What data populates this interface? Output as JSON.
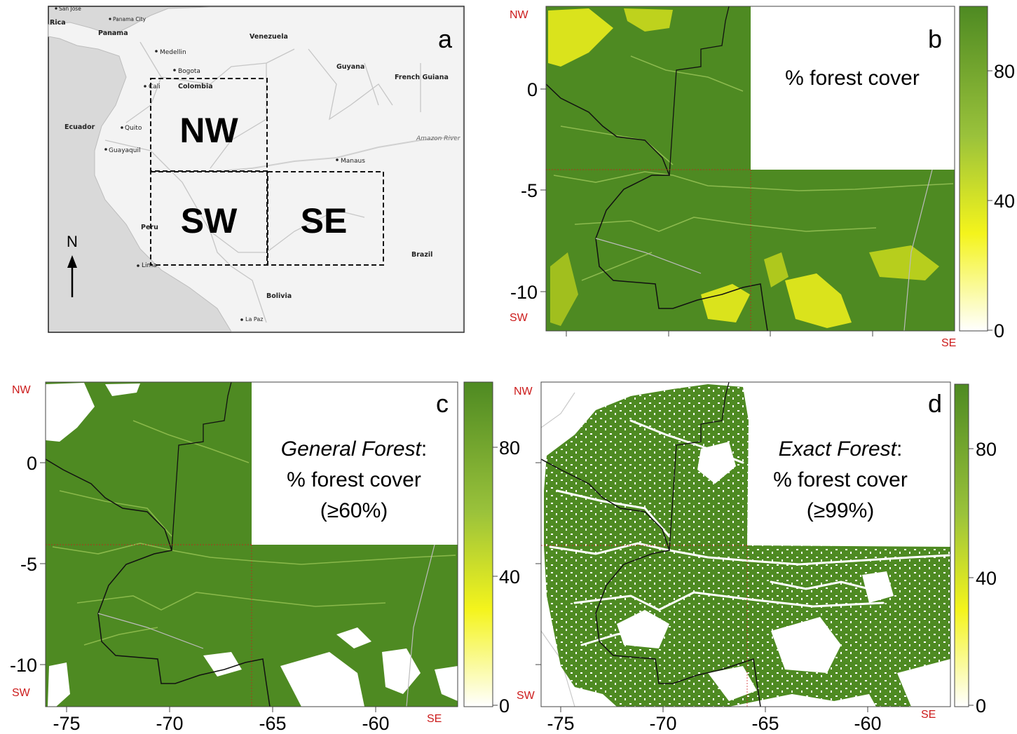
{
  "colors": {
    "forest": "#4e8a22",
    "forest_light": "#76a83a",
    "yellow": "#f2f21a",
    "land_gray": "#f2f2f2",
    "ocean_gray": "#d9d9d9",
    "border_gray": "#c4c4c4",
    "corner_red": "#cc1b1b",
    "boundary_black": "#111111"
  },
  "panel_a": {
    "letter": "a",
    "north_label": "N",
    "regions": [
      {
        "id": "nw",
        "label": "NW"
      },
      {
        "id": "sw",
        "label": "SW"
      },
      {
        "id": "se",
        "label": "SE"
      }
    ],
    "countries": [
      "Rica",
      "Panama",
      "Venezuela",
      "Colombia",
      "Guyana",
      "French Guiana",
      "Ecuador",
      "Peru",
      "Brazil",
      "Bolivia"
    ],
    "cities": [
      "San Jose",
      "Panama City",
      "Medellin",
      "Bogota",
      "Cali",
      "Quito",
      "Guayaquil",
      "Manaus",
      "Lima",
      "La Paz"
    ],
    "river": "Amazon River"
  },
  "panel_b": {
    "letter": "b",
    "caption": "% forest cover",
    "corners": {
      "nw": "NW",
      "sw": "SW",
      "se": "SE"
    },
    "y_ticks": [
      "0",
      "-5",
      "-10"
    ],
    "colorbar": {
      "min": 0,
      "max": 100,
      "ticks": [
        "0",
        "40",
        "80"
      ]
    }
  },
  "panel_c": {
    "letter": "c",
    "caption_lines": [
      {
        "italic": "General Forest",
        "rest": ":"
      },
      {
        "italic": "",
        "rest": "% forest cover"
      },
      {
        "italic": "",
        "rest": "(≥60%)"
      }
    ],
    "corners": {
      "nw": "NW",
      "sw": "SW",
      "se": "SE"
    },
    "x_ticks": [
      "-75",
      "-70",
      "-65",
      "-60"
    ],
    "y_ticks": [
      "0",
      "-5",
      "-10"
    ],
    "colorbar": {
      "min": 0,
      "max": 100,
      "ticks": [
        "0",
        "40",
        "80"
      ]
    }
  },
  "panel_d": {
    "letter": "d",
    "caption_lines": [
      {
        "italic": "Exact Forest",
        "rest": ":"
      },
      {
        "italic": "",
        "rest": "% forest cover"
      },
      {
        "italic": "",
        "rest": "(≥99%)"
      }
    ],
    "corners": {
      "nw": "NW",
      "sw": "SW",
      "se": "SE"
    },
    "x_ticks": [
      "-75",
      "-70",
      "-65",
      "-60"
    ],
    "colorbar": {
      "min": 0,
      "max": 100,
      "ticks": [
        "0",
        "40",
        "80"
      ]
    }
  }
}
